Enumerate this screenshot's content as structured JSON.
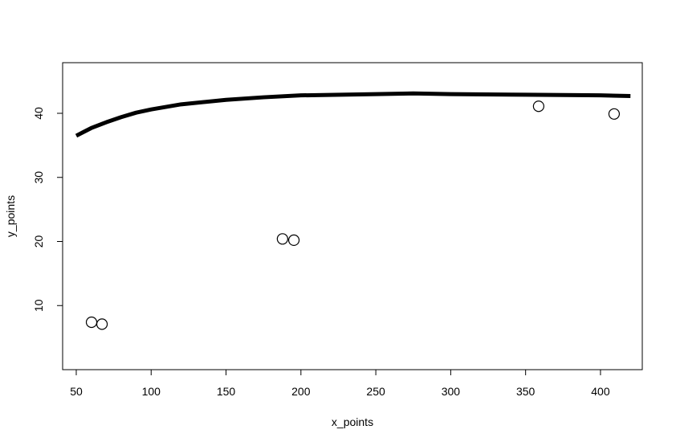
{
  "chart_data": {
    "type": "scatter",
    "xlabel": "x_points",
    "ylabel": "y_points",
    "xlim": [
      40.9,
      427.9
    ],
    "ylim": [
      0,
      47.9
    ],
    "xticks": [
      50,
      100,
      150,
      200,
      250,
      300,
      350,
      400
    ],
    "yticks": [
      10,
      20,
      30,
      40
    ],
    "series": [
      {
        "style": "points",
        "color": "#000000",
        "x": [
          60.2,
          67.2,
          187.7,
          195.3,
          358.7,
          409.1
        ],
        "values": [
          7.4,
          7.1,
          20.4,
          20.2,
          41.1,
          39.9
        ]
      },
      {
        "style": "line",
        "color": "#000000",
        "x": [
          50,
          55,
          60,
          70,
          80,
          90,
          100,
          120,
          150,
          175,
          200,
          250,
          275,
          300,
          350,
          400,
          420
        ],
        "values": [
          36.5,
          37.1,
          37.7,
          38.6,
          39.4,
          40.1,
          40.6,
          41.4,
          42.1,
          42.5,
          42.8,
          43.0,
          43.1,
          43.0,
          42.9,
          42.8,
          42.7
        ]
      }
    ]
  }
}
